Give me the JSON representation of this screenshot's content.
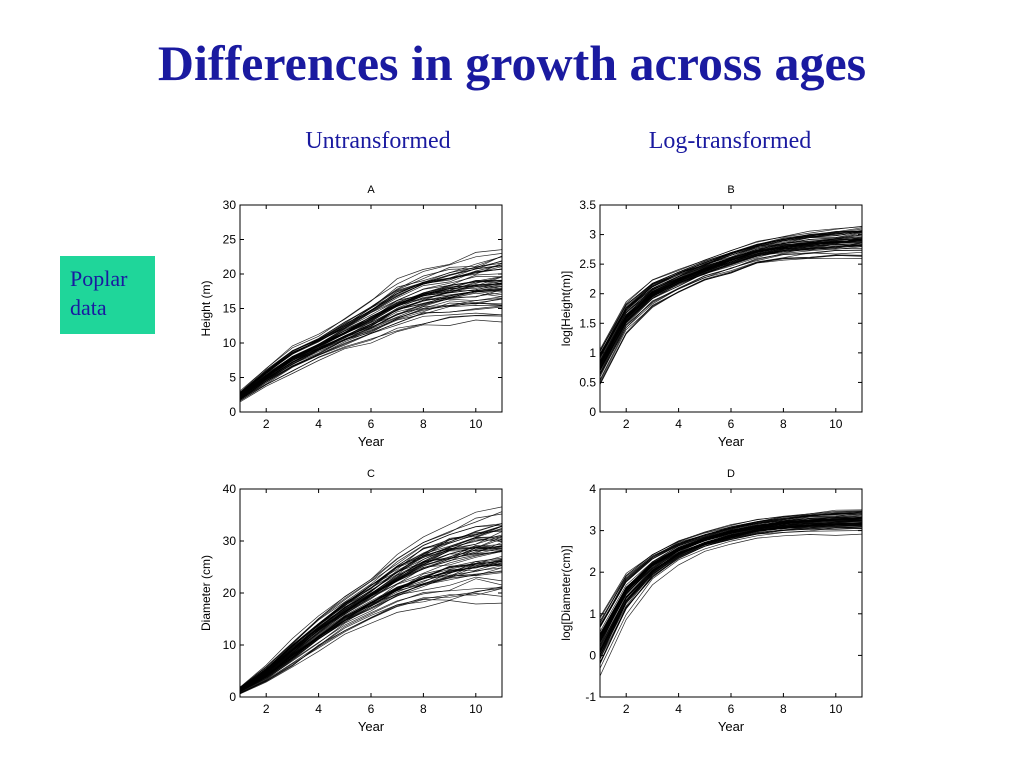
{
  "slide": {
    "title": "Differences in growth across ages",
    "left_heading": "Untransformed",
    "right_heading": "Log-transformed",
    "note_lines": [
      "Poplar",
      "data"
    ],
    "colors": {
      "title": "#1a1aa0",
      "note_bg": "#1fd69a",
      "lines": "#000000"
    }
  },
  "chart_data": [
    {
      "type": "line",
      "title": "A",
      "xlabel": "Year",
      "ylabel": "Height (m)",
      "xlim": [
        1,
        11
      ],
      "ylim": [
        0,
        30
      ],
      "xticks": [
        2,
        4,
        6,
        8,
        10
      ],
      "yticks": [
        0,
        5,
        10,
        15,
        20,
        25,
        30
      ],
      "grid": false,
      "series_count": 60,
      "x": [
        1,
        2,
        3,
        4,
        5,
        6,
        7,
        8,
        9,
        10,
        11
      ],
      "mean": [
        2.2,
        5.0,
        7.5,
        9.3,
        11.2,
        13.0,
        15.0,
        16.3,
        17.0,
        17.6,
        18.0
      ],
      "spread": [
        0.4,
        0.7,
        1.0,
        1.0,
        1.2,
        1.6,
        2.0,
        2.2,
        2.4,
        2.6,
        3.0
      ]
    },
    {
      "type": "line",
      "title": "B",
      "xlabel": "Year",
      "ylabel": "log[Height(m)]",
      "xlim": [
        1,
        11
      ],
      "ylim": [
        0,
        3.5
      ],
      "xticks": [
        2,
        4,
        6,
        8,
        10
      ],
      "yticks": [
        0,
        0.5,
        1,
        1.5,
        2,
        2.5,
        3,
        3.5
      ],
      "grid": false,
      "series_count": 60,
      "x": [
        1,
        2,
        3,
        4,
        5,
        6,
        7,
        8,
        9,
        10,
        11
      ],
      "mean": [
        0.78,
        1.6,
        2.0,
        2.22,
        2.4,
        2.55,
        2.7,
        2.78,
        2.83,
        2.86,
        2.89
      ],
      "spread": [
        0.2,
        0.18,
        0.15,
        0.13,
        0.12,
        0.13,
        0.13,
        0.14,
        0.15,
        0.16,
        0.18
      ]
    },
    {
      "type": "line",
      "title": "C",
      "xlabel": "Year",
      "ylabel": "Diameter (cm)",
      "xlim": [
        1,
        11
      ],
      "ylim": [
        0,
        40
      ],
      "xticks": [
        2,
        4,
        6,
        8,
        10
      ],
      "yticks": [
        0,
        10,
        20,
        30,
        40
      ],
      "grid": false,
      "series_count": 70,
      "x": [
        1,
        2,
        3,
        4,
        5,
        6,
        7,
        8,
        9,
        10,
        11
      ],
      "mean": [
        1.3,
        4.5,
        8.5,
        12.5,
        16.0,
        19.0,
        22.0,
        24.5,
        26.0,
        27.2,
        28.0
      ],
      "spread": [
        0.4,
        1.0,
        1.6,
        2.0,
        2.2,
        2.6,
        3.2,
        4.0,
        4.6,
        5.0,
        5.4
      ]
    },
    {
      "type": "line",
      "title": "D",
      "xlabel": "Year",
      "ylabel": "log[Diameter(cm)]",
      "xlim": [
        1,
        11
      ],
      "ylim": [
        -1,
        4
      ],
      "xticks": [
        2,
        4,
        6,
        8,
        10
      ],
      "yticks": [
        -1,
        0,
        1,
        2,
        3,
        4
      ],
      "grid": false,
      "series_count": 70,
      "x": [
        1,
        2,
        3,
        4,
        5,
        6,
        7,
        8,
        9,
        10,
        11
      ],
      "mean": [
        0.25,
        1.45,
        2.1,
        2.5,
        2.75,
        2.92,
        3.05,
        3.13,
        3.18,
        3.21,
        3.23
      ],
      "spread": [
        0.4,
        0.3,
        0.2,
        0.15,
        0.12,
        0.12,
        0.12,
        0.13,
        0.14,
        0.15,
        0.16
      ]
    }
  ]
}
